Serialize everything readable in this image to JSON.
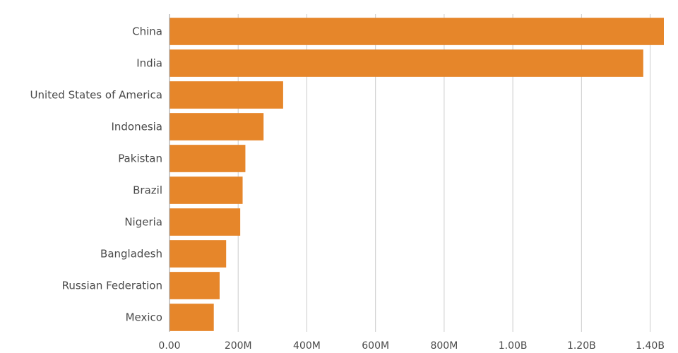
{
  "chart_data": {
    "type": "bar",
    "orientation": "horizontal",
    "title": "",
    "xlabel": "",
    "ylabel": "",
    "categories": [
      "China",
      "India",
      "United States of America",
      "Indonesia",
      "Pakistan",
      "Brazil",
      "Nigeria",
      "Bangladesh",
      "Russian Federation",
      "Mexico"
    ],
    "values": [
      1440000000,
      1380000000,
      331000000,
      274000000,
      221000000,
      213000000,
      206000000,
      165000000,
      146000000,
      129000000
    ],
    "xlim": [
      0,
      1440000000
    ],
    "ticks": [
      0,
      200000000,
      400000000,
      600000000,
      800000000,
      1000000000,
      1200000000,
      1400000000
    ],
    "tick_labels": [
      "0.00",
      "200M",
      "400M",
      "600M",
      "800M",
      "1.00B",
      "1.20B",
      "1.40B"
    ],
    "bar_color": "#e6862a",
    "grid": true,
    "legend": "none"
  }
}
